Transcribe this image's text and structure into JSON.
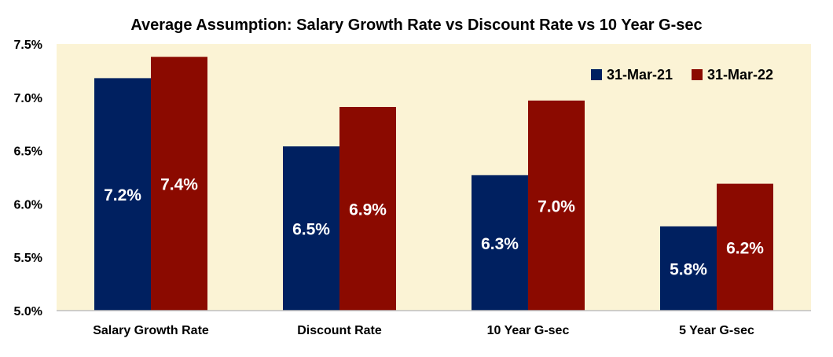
{
  "chart_data": {
    "type": "bar",
    "title": "Average Assumption: Salary Growth Rate vs Discount Rate vs 10 Year G-sec",
    "xlabel": "",
    "ylabel": "",
    "categories": [
      "Salary Growth Rate",
      "Discount Rate",
      "10 Year G-sec",
      "5 Year G-sec"
    ],
    "series": [
      {
        "name": "31-Mar-21",
        "color": "#002060",
        "values": [
          7.18,
          6.54,
          6.27,
          5.79
        ],
        "labels": [
          "7.2%",
          "6.5%",
          "6.3%",
          "5.8%"
        ]
      },
      {
        "name": "31-Mar-22",
        "color": "#8B0A00",
        "values": [
          7.38,
          6.91,
          6.97,
          6.19
        ],
        "labels": [
          "7.4%",
          "6.9%",
          "7.0%",
          "6.2%"
        ]
      }
    ],
    "ylim": [
      5.0,
      7.5
    ],
    "yticks": [
      5.0,
      5.5,
      6.0,
      6.5,
      7.0,
      7.5
    ],
    "ytick_labels": [
      "5.0%",
      "5.5%",
      "6.0%",
      "6.5%",
      "7.0%",
      "7.5%"
    ],
    "grid": false,
    "legend_position": "top-right",
    "plot_background": "#FBF3D5"
  }
}
